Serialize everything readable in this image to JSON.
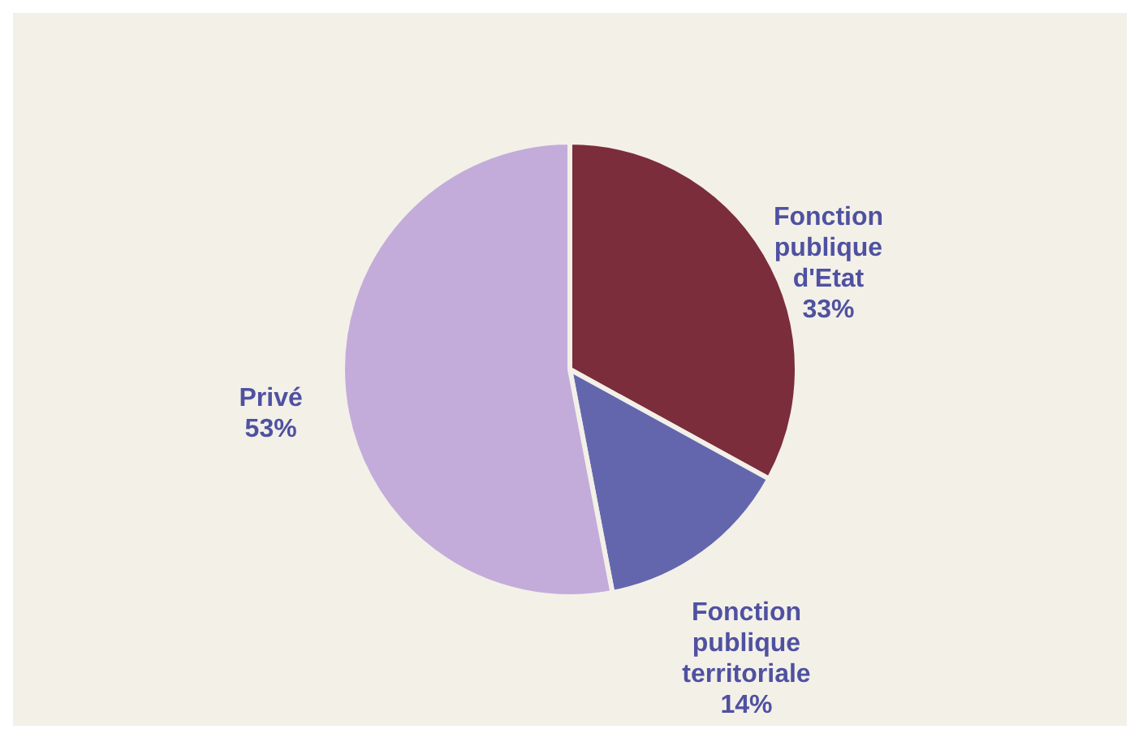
{
  "chart_data": {
    "type": "pie",
    "categories": [
      "Fonction publique d'Etat",
      "Fonction publique territoriale",
      "Privé"
    ],
    "values": [
      33,
      14,
      53
    ],
    "colors": [
      "#7b2d3c",
      "#6466ad",
      "#c3acda"
    ],
    "value_labels": [
      "33%",
      "14%",
      "53%"
    ],
    "legend": false
  }
}
